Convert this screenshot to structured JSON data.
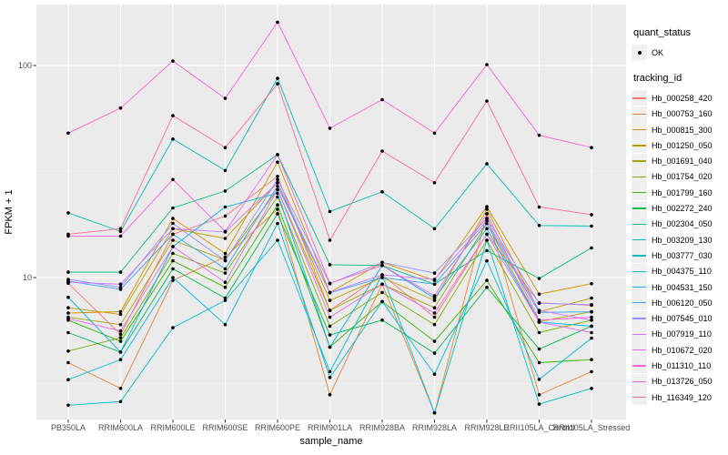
{
  "legend": {
    "quant_status_title": "quant_status",
    "quant_status_items": [
      {
        "label": "OK"
      }
    ],
    "tracking_id_title": "tracking_id"
  },
  "chart_data": {
    "type": "line",
    "title": "",
    "xlabel": "sample_name",
    "ylabel": "FPKM + 1",
    "yscale": "log10",
    "ylim": [
      2.1,
      192
    ],
    "grid": "on",
    "legend_position": "right",
    "y_major_ticks": [
      {
        "label": "100",
        "value": 100
      },
      {
        "label": "10",
        "value": 10
      }
    ],
    "y_minor_ticks": [
      31.62,
      3.162
    ],
    "point_marker": "black point (quant_status = OK) on every value",
    "categories": [
      "PB350LA",
      "RRIM600LA",
      "RRIM600LE",
      "RRIM600SE",
      "RRIM600PE",
      "RRIM901LA",
      "RRIM928BA",
      "RRIM928LA",
      "RRIM928LE",
      "RRII105LA_Control",
      "RRII105LA_Stressed"
    ],
    "style": {
      "panel_bg": "#EBEBEB",
      "grid_color": "#FFFFFF",
      "tick_text_color": "#4D4D4D",
      "axis_title_color": "#000000",
      "point_color": "#000000"
    },
    "series": [
      {
        "name": "Hb_000258_420",
        "color": "#F8766D",
        "values": [
          9.4,
          5.4,
          16,
          19.5,
          30,
          7.0,
          10.3,
          6.5,
          16,
          7.6,
          7.4
        ]
      },
      {
        "name": "Hb_000753_160",
        "color": "#EA8331",
        "values": [
          3.97,
          3.0,
          9.7,
          12.5,
          21,
          2.8,
          9.3,
          2.3,
          20,
          2.8,
          3.6
        ]
      },
      {
        "name": "Hb_000815_300",
        "color": "#D89000",
        "values": [
          6.8,
          6.9,
          19,
          13,
          35,
          8.5,
          11.8,
          9.7,
          21.6,
          8.35,
          9.36
        ]
      },
      {
        "name": "Hb_001250_050",
        "color": "#C09B00",
        "values": [
          7.2,
          6.7,
          17,
          15.3,
          28,
          7.8,
          10.0,
          7.8,
          21,
          6.9,
          8.0
        ]
      },
      {
        "name": "Hb_001691_040",
        "color": "#A3A500",
        "values": [
          6.5,
          6.0,
          15,
          12.1,
          26,
          7.0,
          9.3,
          7.2,
          18,
          6.2,
          6.9
        ]
      },
      {
        "name": "Hb_001754_020",
        "color": "#7CAE00",
        "values": [
          4.5,
          5.2,
          13,
          10.5,
          24,
          5.9,
          8.5,
          6.0,
          15,
          5.5,
          6.3
        ]
      },
      {
        "name": "Hb_001799_160",
        "color": "#39B600",
        "values": [
          6.3,
          5.0,
          12,
          9.0,
          22,
          4.7,
          7.7,
          5.0,
          9.7,
          3.97,
          4.1
        ]
      },
      {
        "name": "Hb_002272_240",
        "color": "#00BB4E",
        "values": [
          5.5,
          4.45,
          11,
          8.0,
          20,
          5.36,
          6.3,
          4.4,
          9.0,
          4.6,
          5.9
        ]
      },
      {
        "name": "Hb_002304_050",
        "color": "#00BF7D",
        "values": [
          10.6,
          10.6,
          21.3,
          25.6,
          38,
          11.5,
          11.4,
          9.3,
          13.4,
          9.9,
          13.8
        ]
      },
      {
        "name": "Hb_003209_130",
        "color": "#00C1A3",
        "values": [
          20.2,
          16.5,
          45,
          32,
          87,
          20.5,
          25.4,
          17,
          34.4,
          17.6,
          17.5
        ]
      },
      {
        "name": "Hb_003777_030",
        "color": "#00BFC4",
        "values": [
          2.5,
          2.6,
          5.8,
          7.8,
          15,
          3.6,
          10.3,
          2.3,
          15,
          2.53,
          3.0
        ]
      },
      {
        "name": "Hb_004375_110",
        "color": "#00BAE0",
        "values": [
          3.3,
          4.1,
          10,
          6.0,
          18,
          3.38,
          7.7,
          3.5,
          12,
          3.31,
          5.18
        ]
      },
      {
        "name": "Hb_004531_150",
        "color": "#00B0F6",
        "values": [
          8.07,
          4.45,
          14,
          21.5,
          25,
          4.7,
          11.4,
          8.0,
          17,
          6.16,
          5.9
        ]
      },
      {
        "name": "Hb_006120_050",
        "color": "#35A2FF",
        "values": [
          9.6,
          8.8,
          16,
          11,
          27,
          8.48,
          10.0,
          9.3,
          18,
          6.85,
          6.89
        ]
      },
      {
        "name": "Hb_007545_010",
        "color": "#9590FF",
        "values": [
          9.8,
          9.0,
          18,
          12,
          29,
          9.36,
          11.8,
          10.5,
          19,
          7.56,
          7.45
        ]
      },
      {
        "name": "Hb_007919_110",
        "color": "#C77CFF",
        "values": [
          9.5,
          9.3,
          17,
          16.4,
          28,
          8.5,
          10.3,
          9.8,
          18.5,
          7.0,
          6.3
        ]
      },
      {
        "name": "Hb_010672_020",
        "color": "#E76BF3",
        "values": [
          6.4,
          5.6,
          14,
          9.5,
          26,
          6.5,
          9.3,
          6.8,
          16,
          6.16,
          5.5
        ]
      },
      {
        "name": "Hb_011310_110",
        "color": "#FA62DB",
        "values": [
          15.7,
          15.7,
          29,
          16.5,
          38,
          9.4,
          11.4,
          8.2,
          20,
          6.3,
          6.5
        ]
      },
      {
        "name": "Hb_013726_050",
        "color": "#FF61CC",
        "values": [
          48,
          63,
          105,
          70,
          160,
          50.6,
          69,
          48,
          101,
          46.9,
          41
        ]
      },
      {
        "name": "Hb_116349_120",
        "color": "#FF6A98",
        "values": [
          16,
          17,
          58,
          41,
          82,
          15,
          39.5,
          28,
          68,
          21.5,
          19.8
        ]
      }
    ]
  }
}
